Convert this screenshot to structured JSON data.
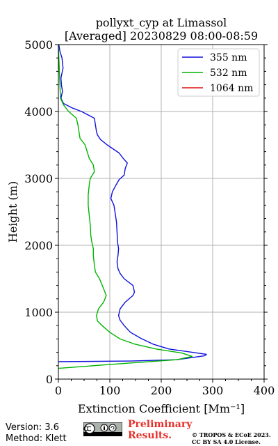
{
  "chart_data": {
    "type": "line",
    "title": "pollyxt_cyp at Limassol",
    "subtitle": "[Averaged] 20230829 08:00-08:59",
    "xlabel": "Extinction Coefficient [Mm⁻¹]",
    "ylabel": "Height (m)",
    "xlim": [
      0,
      400
    ],
    "ylim": [
      0,
      5000
    ],
    "x_ticks": [
      "0",
      "100",
      "200",
      "300",
      "400"
    ],
    "y_ticks": [
      "0",
      "1000",
      "2000",
      "3000",
      "4000",
      "5000"
    ],
    "grid": true,
    "legend_position": "top-right",
    "series": [
      {
        "name": "355 nm",
        "color": "#1010dd",
        "points": [
          [
            0,
            260
          ],
          [
            140,
            270
          ],
          [
            230,
            290
          ],
          [
            285,
            350
          ],
          [
            288,
            370
          ],
          [
            270,
            390
          ],
          [
            215,
            450
          ],
          [
            185,
            520
          ],
          [
            160,
            610
          ],
          [
            140,
            700
          ],
          [
            128,
            800
          ],
          [
            120,
            880
          ],
          [
            117,
            950
          ],
          [
            120,
            1050
          ],
          [
            130,
            1150
          ],
          [
            145,
            1250
          ],
          [
            148,
            1300
          ],
          [
            145,
            1400
          ],
          [
            128,
            1500
          ],
          [
            120,
            1580
          ],
          [
            116,
            1650
          ],
          [
            114,
            1750
          ],
          [
            116,
            1850
          ],
          [
            117,
            1950
          ],
          [
            115,
            2050
          ],
          [
            114,
            2200
          ],
          [
            113,
            2350
          ],
          [
            110,
            2500
          ],
          [
            108,
            2600
          ],
          [
            102,
            2700
          ],
          [
            105,
            2800
          ],
          [
            112,
            2900
          ],
          [
            118,
            2980
          ],
          [
            128,
            3050
          ],
          [
            130,
            3150
          ],
          [
            134,
            3230
          ],
          [
            126,
            3300
          ],
          [
            118,
            3380
          ],
          [
            95,
            3500
          ],
          [
            82,
            3580
          ],
          [
            76,
            3650
          ],
          [
            74,
            3700
          ],
          [
            72,
            3800
          ],
          [
            70,
            3900
          ],
          [
            45,
            4000
          ],
          [
            28,
            4050
          ],
          [
            10,
            4120
          ],
          [
            5,
            4200
          ],
          [
            8,
            4300
          ],
          [
            6,
            4400
          ],
          [
            5,
            4500
          ],
          [
            9,
            4650
          ],
          [
            7,
            4800
          ],
          [
            3,
            4900
          ],
          [
            1,
            5000
          ]
        ]
      },
      {
        "name": "532 nm",
        "color": "#00b400",
        "points": [
          [
            0,
            160
          ],
          [
            120,
            230
          ],
          [
            230,
            290
          ],
          [
            260,
            340
          ],
          [
            240,
            390
          ],
          [
            190,
            450
          ],
          [
            150,
            520
          ],
          [
            120,
            600
          ],
          [
            100,
            700
          ],
          [
            85,
            800
          ],
          [
            76,
            870
          ],
          [
            74,
            950
          ],
          [
            78,
            1050
          ],
          [
            88,
            1150
          ],
          [
            93,
            1250
          ],
          [
            88,
            1350
          ],
          [
            80,
            1500
          ],
          [
            72,
            1600
          ],
          [
            70,
            1700
          ],
          [
            68,
            1850
          ],
          [
            68,
            1950
          ],
          [
            65,
            2050
          ],
          [
            63,
            2150
          ],
          [
            62,
            2300
          ],
          [
            60,
            2450
          ],
          [
            58,
            2600
          ],
          [
            58,
            2750
          ],
          [
            60,
            2900
          ],
          [
            62,
            3000
          ],
          [
            70,
            3100
          ],
          [
            68,
            3200
          ],
          [
            60,
            3300
          ],
          [
            56,
            3400
          ],
          [
            52,
            3500
          ],
          [
            42,
            3600
          ],
          [
            40,
            3700
          ],
          [
            38,
            3800
          ],
          [
            35,
            3900
          ],
          [
            20,
            4000
          ],
          [
            10,
            4100
          ],
          [
            4,
            4200
          ],
          [
            3,
            4400
          ],
          [
            2,
            4600
          ],
          [
            1,
            4800
          ],
          [
            0,
            5000
          ]
        ]
      },
      {
        "name": "1064 nm",
        "color": "#e01010",
        "points": []
      }
    ]
  },
  "footer": {
    "version": "Version: 3.6",
    "method": "Method: Klett",
    "preliminary_line1": "Preliminary",
    "preliminary_line2": "Results.",
    "copyright_line1": "© TROPOS & ECoE 2023.",
    "copyright_line2": "CC BY SA 4.0 License."
  }
}
